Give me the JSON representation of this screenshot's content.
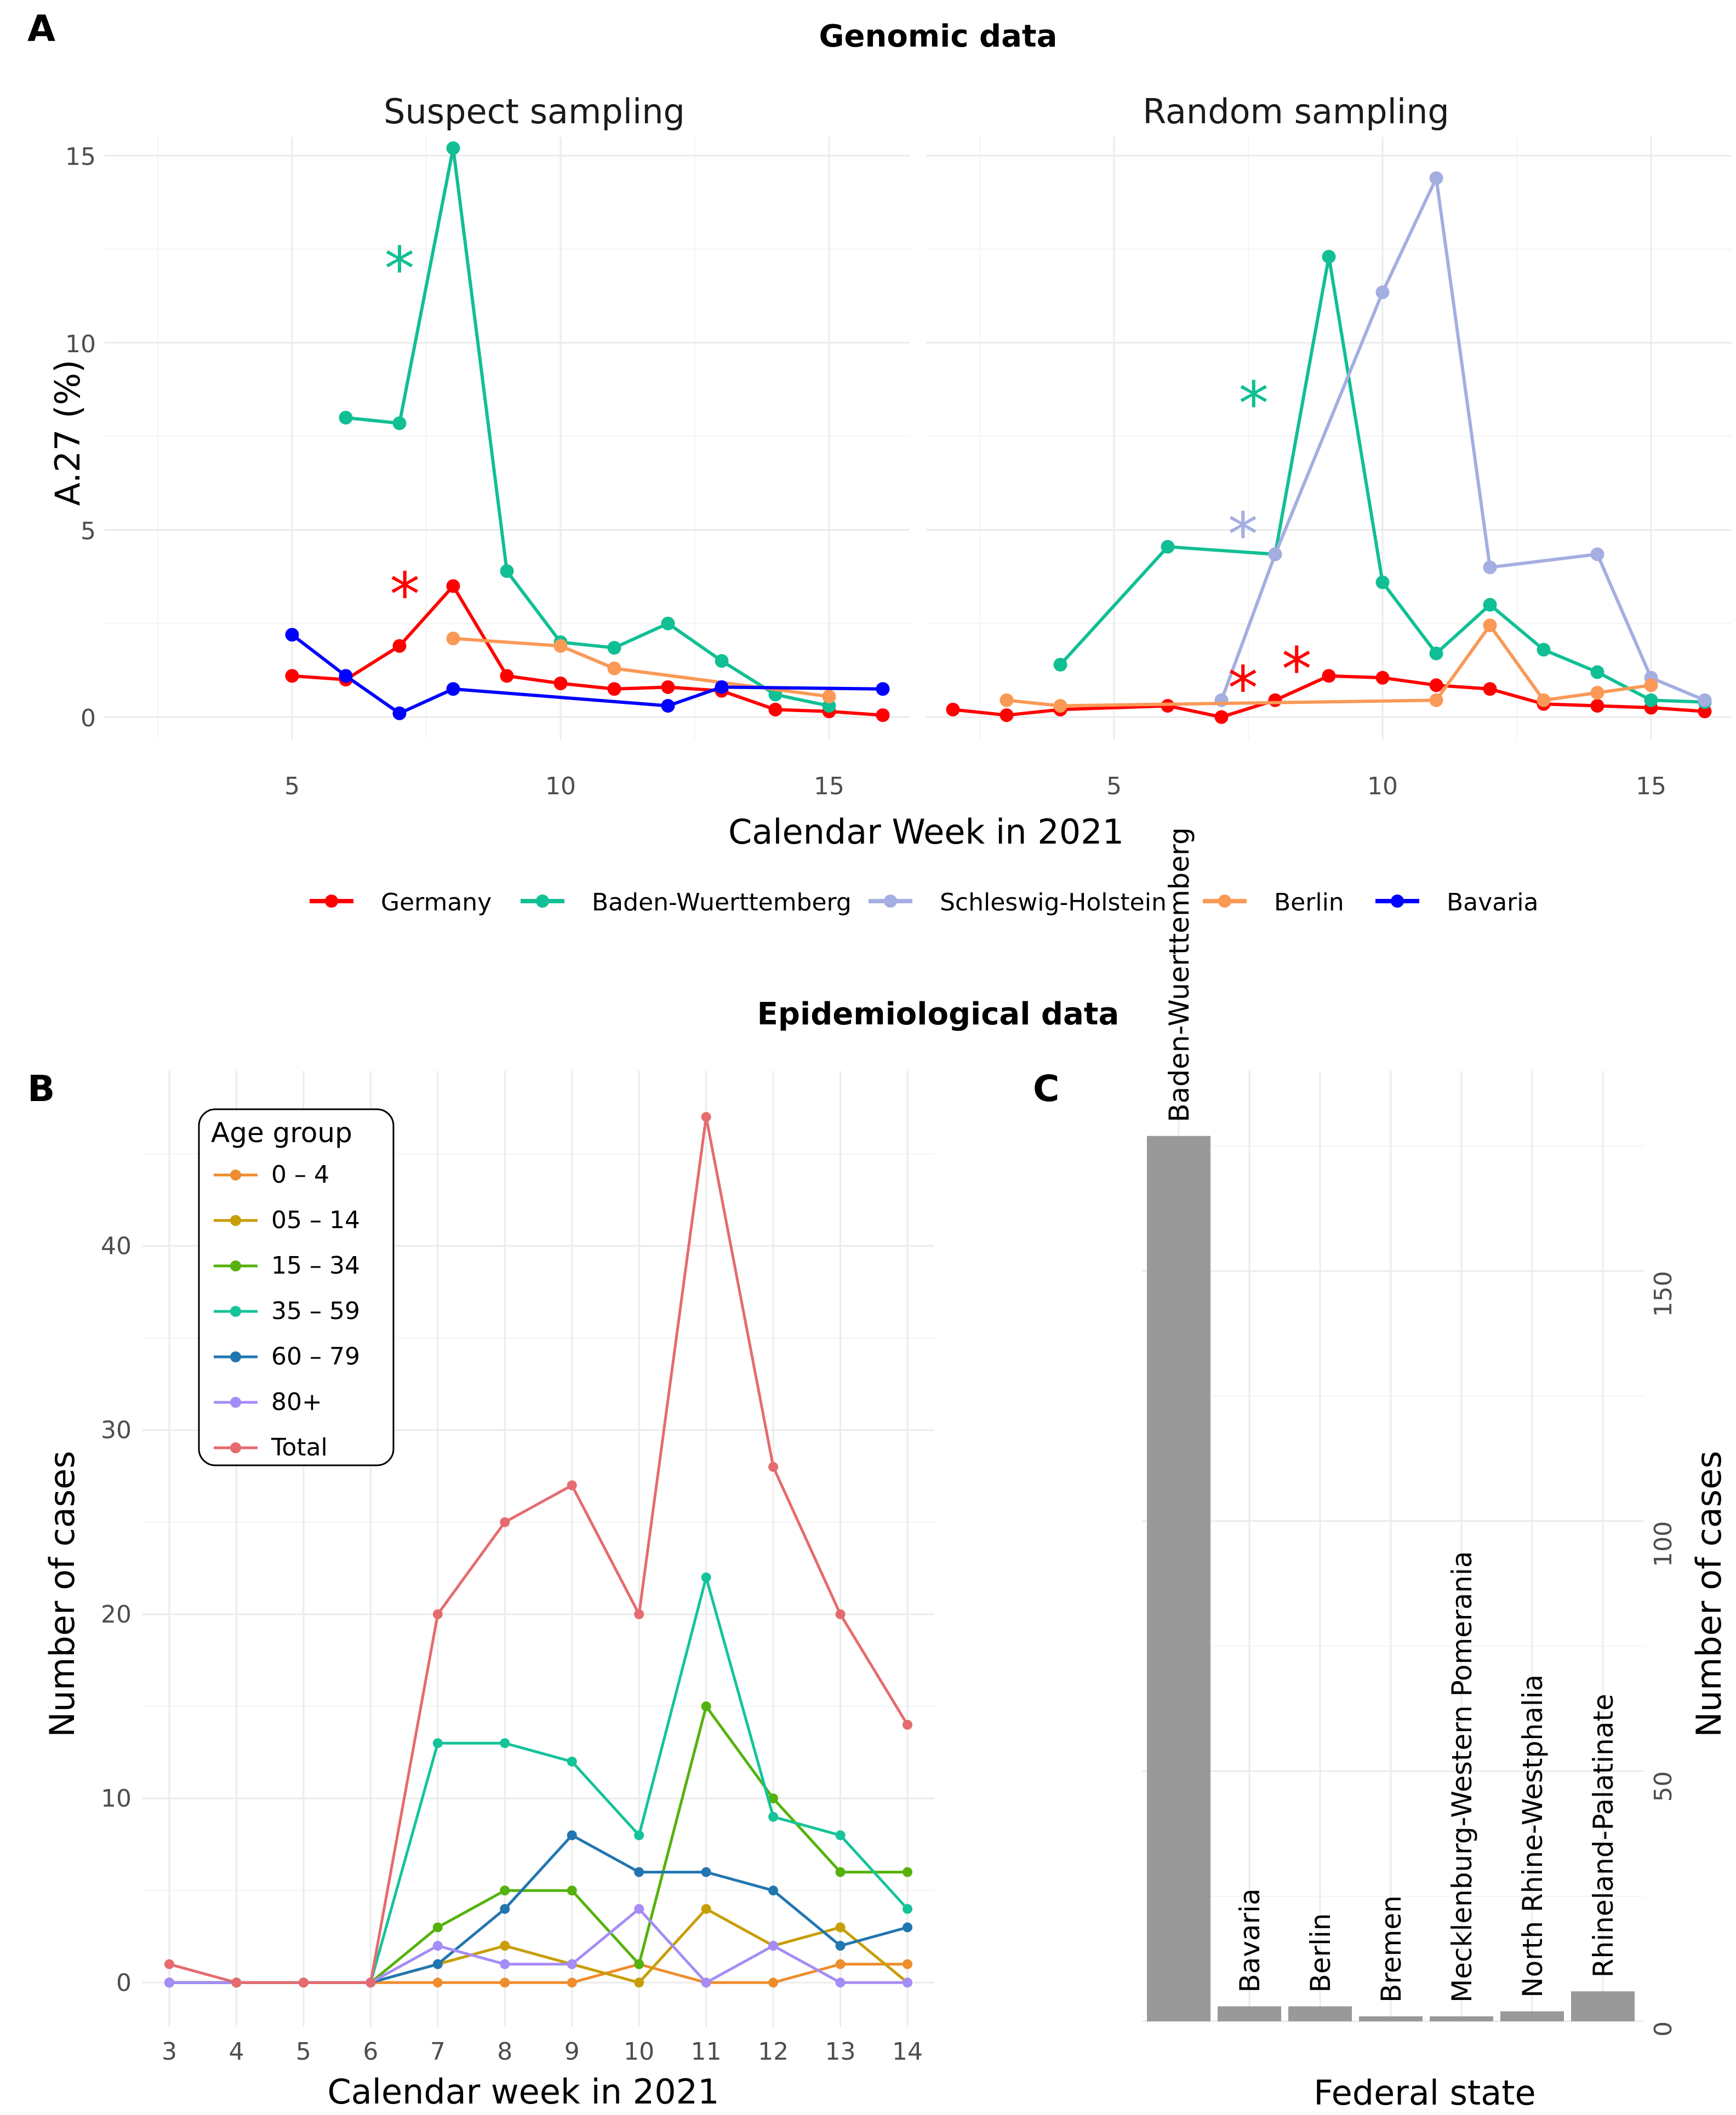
{
  "panels": {
    "A": {
      "letter": "A",
      "title": "Genomic data",
      "xlabel": "Calendar Week in 2021",
      "ylabel": "A.27 (%)",
      "x_ticks": [
        "5",
        "10",
        "15"
      ],
      "y_ticks": [
        "0",
        "5",
        "10",
        "15"
      ],
      "legend": [
        "Germany",
        "Baden-Wuerttemberg",
        "Schleswig-Holstein",
        "Berlin",
        "Bavaria"
      ],
      "facets": [
        {
          "title": "Suspect sampling"
        },
        {
          "title": "Random sampling"
        }
      ]
    },
    "B": {
      "letter": "B",
      "xlabel": "Calendar week in 2021",
      "ylabel": "Number of cases",
      "legend_title": "Age group",
      "x_ticks": [
        "3",
        "4",
        "5",
        "6",
        "7",
        "8",
        "9",
        "10",
        "11",
        "12",
        "13",
        "14"
      ],
      "y_ticks": [
        "0",
        "10",
        "20",
        "30",
        "40"
      ]
    },
    "C": {
      "letter": "C",
      "subtitle": "Epidemiological data",
      "xlabel": "Federal state",
      "ylabel": "Number of cases",
      "y_ticks": [
        "0",
        "50",
        "100",
        "150"
      ]
    }
  },
  "colors": {
    "Germany": "#ff0000",
    "Baden-Wuerttemberg": "#11bf94",
    "Schleswig-Holstein": "#a5aee0",
    "Berlin": "#fa9956",
    "Bavaria": "#0000ff",
    "0 – 4": "#ee8d2e",
    "05 – 14": "#c79e05",
    "15 – 34": "#55b20c",
    "35 – 59": "#15c39a",
    "60 – 79": "#2176b0",
    "80+": "#a58cf6",
    "Total": "#e56b6e",
    "bar": "#999999"
  },
  "chart_data": [
    {
      "id": "A",
      "type": "line",
      "title": "Genomic data",
      "xlabel": "Calendar Week in 2021",
      "ylabel": "A.27 (%)",
      "xlim": [
        1.5,
        16.5
      ],
      "ylim": [
        -0.6,
        15.5
      ],
      "facets": [
        {
          "title": "Suspect sampling",
          "series": [
            {
              "name": "Germany",
              "x": [
                5,
                6,
                7,
                8,
                9,
                10,
                11,
                12,
                13,
                14,
                15,
                16
              ],
              "values": [
                1.1,
                1.0,
                1.9,
                3.5,
                1.1,
                0.9,
                0.75,
                0.8,
                0.7,
                0.2,
                0.15,
                0.05
              ]
            },
            {
              "name": "Baden-Wuerttemberg",
              "x": [
                6,
                7,
                8,
                9,
                10,
                11,
                12,
                13,
                14,
                15
              ],
              "values": [
                8.0,
                7.85,
                15.2,
                3.9,
                2.0,
                1.85,
                2.5,
                1.5,
                0.6,
                0.3
              ]
            },
            {
              "name": "Berlin",
              "x": [
                8,
                10,
                11,
                15
              ],
              "values": [
                2.1,
                1.9,
                1.3,
                0.55
              ]
            },
            {
              "name": "Bavaria",
              "x": [
                5,
                6,
                7,
                8,
                12,
                13,
                16
              ],
              "values": [
                2.2,
                1.1,
                0.1,
                0.75,
                0.3,
                0.8,
                0.75
              ]
            }
          ],
          "annotations": [
            {
              "text": "*",
              "series": "Baden-Wuerttemberg",
              "x": 7,
              "y": 12.0
            },
            {
              "text": "*",
              "series": "Germany",
              "x": 7.1,
              "y": 3.3
            }
          ]
        },
        {
          "title": "Random sampling",
          "series": [
            {
              "name": "Germany",
              "x": [
                2,
                3,
                4,
                6,
                7,
                8,
                9,
                10,
                11,
                12,
                13,
                14,
                15,
                16
              ],
              "values": [
                0.2,
                0.05,
                0.2,
                0.3,
                0.0,
                0.45,
                1.1,
                1.05,
                0.85,
                0.75,
                0.35,
                0.3,
                0.25,
                0.15
              ]
            },
            {
              "name": "Baden-Wuerttemberg",
              "x": [
                4,
                6,
                8,
                9,
                10,
                11,
                12,
                13,
                14,
                15,
                16
              ],
              "values": [
                1.4,
                4.55,
                4.35,
                12.3,
                3.6,
                1.7,
                3.0,
                1.8,
                1.2,
                0.45,
                0.4
              ]
            },
            {
              "name": "Schleswig-Holstein",
              "x": [
                7,
                8,
                10,
                11,
                12,
                14,
                15,
                16
              ],
              "values": [
                0.45,
                4.35,
                11.35,
                14.4,
                4.0,
                4.35,
                1.05,
                0.45
              ]
            },
            {
              "name": "Berlin",
              "x": [
                3,
                4,
                11,
                12,
                13,
                14,
                15
              ],
              "values": [
                0.45,
                0.3,
                0.45,
                2.45,
                0.45,
                0.65,
                0.85
              ]
            }
          ],
          "annotations": [
            {
              "text": "*",
              "series": "Baden-Wuerttemberg",
              "x": 7.6,
              "y": 8.4
            },
            {
              "text": "*",
              "series": "Schleswig-Holstein",
              "x": 7.4,
              "y": 4.9
            },
            {
              "text": "*",
              "series": "Germany",
              "x": 7.4,
              "y": 0.8
            },
            {
              "text": "*",
              "series": "Germany",
              "x": 8.4,
              "y": 1.3
            }
          ]
        }
      ]
    },
    {
      "id": "B",
      "type": "line",
      "title": "",
      "xlabel": "Calendar week in 2021",
      "ylabel": "Number of cases",
      "legend_title": "Age group",
      "xlim": [
        2.6,
        14.4
      ],
      "ylim": [
        -2.4,
        49.5
      ],
      "categories": [
        3,
        4,
        5,
        6,
        7,
        8,
        9,
        10,
        11,
        12,
        13,
        14
      ],
      "series": [
        {
          "name": "0 – 4",
          "values": [
            0,
            0,
            0,
            0,
            0,
            0,
            0,
            1,
            0,
            0,
            1,
            1
          ]
        },
        {
          "name": "05 – 14",
          "values": [
            0,
            0,
            0,
            0,
            1,
            2,
            1,
            0,
            4,
            2,
            3,
            0
          ]
        },
        {
          "name": "15 – 34",
          "values": [
            0,
            0,
            0,
            0,
            3,
            5,
            5,
            1,
            15,
            10,
            6,
            6
          ]
        },
        {
          "name": "35 – 59",
          "values": [
            0,
            0,
            0,
            0,
            13,
            13,
            12,
            8,
            22,
            9,
            8,
            4
          ]
        },
        {
          "name": "60 – 79",
          "values": [
            0,
            0,
            0,
            0,
            1,
            4,
            8,
            6,
            6,
            5,
            2,
            3
          ]
        },
        {
          "name": "80+",
          "values": [
            0,
            0,
            0,
            0,
            2,
            1,
            1,
            4,
            0,
            2,
            0,
            0
          ]
        },
        {
          "name": "Total",
          "values": [
            1,
            0,
            0,
            0,
            20,
            25,
            27,
            20,
            47,
            28,
            20,
            14
          ]
        }
      ]
    },
    {
      "id": "C",
      "type": "bar",
      "title": "Epidemiological data",
      "xlabel": "Federal state",
      "ylabel": "Number of cases",
      "ylim": [
        0,
        190
      ],
      "categories": [
        "Baden-Wuerttemberg",
        "Bavaria",
        "Berlin",
        "Bremen",
        "Mecklenburg-Western Pomerania",
        "North Rhine-Westphalia",
        "Rhineland-Palatinate"
      ],
      "values": [
        177,
        3,
        3,
        1,
        1,
        2,
        6
      ]
    }
  ]
}
